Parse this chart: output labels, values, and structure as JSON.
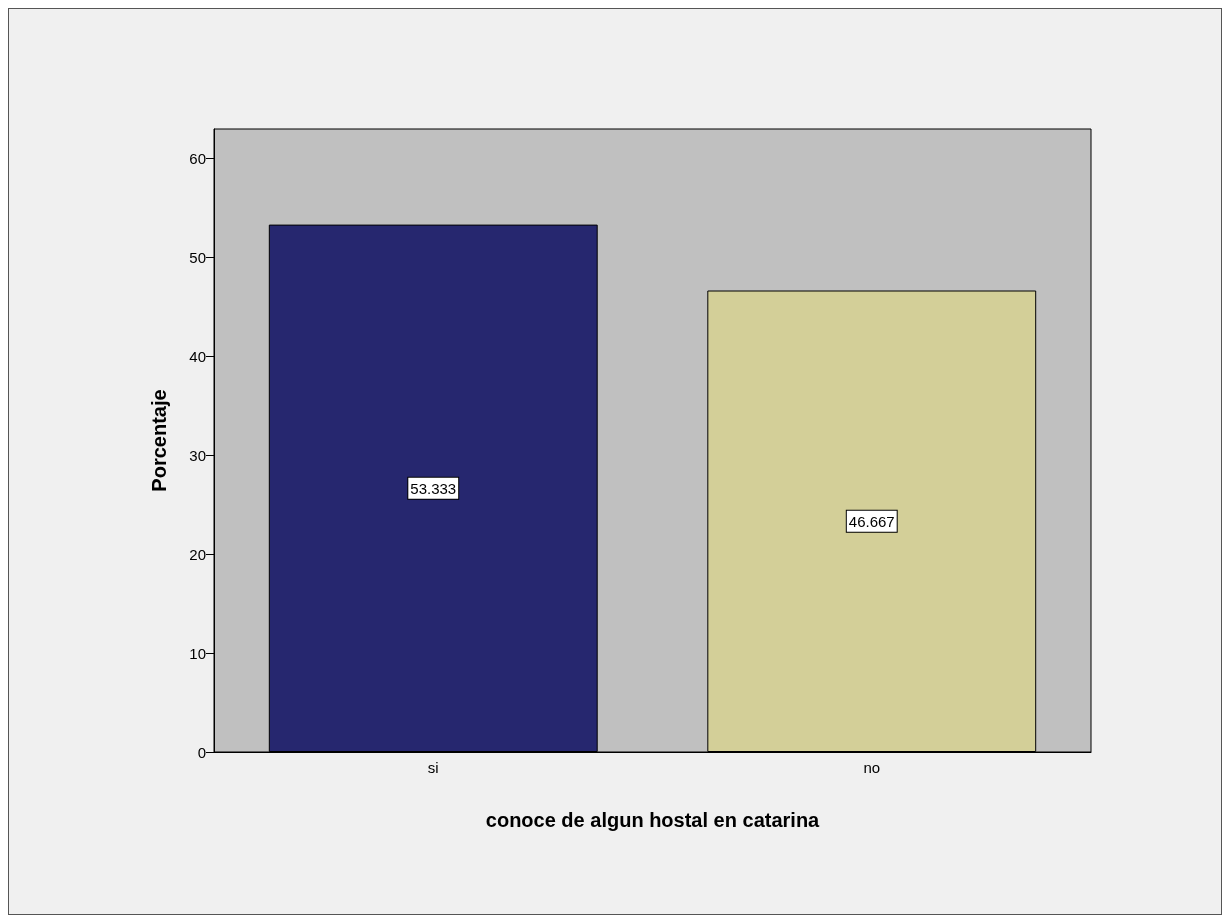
{
  "chart_data": {
    "type": "bar",
    "xlabel": "conoce de algun hostal en catarina",
    "ylabel": "Porcentaje",
    "categories": [
      "si",
      "no"
    ],
    "values": [
      53.333,
      46.667
    ],
    "colors": [
      "#26276f",
      "#d3cf98"
    ],
    "ylim": [
      0,
      63
    ],
    "yticks": [
      0,
      10,
      20,
      30,
      40,
      50,
      60
    ],
    "data_labels": true,
    "grid": false
  }
}
